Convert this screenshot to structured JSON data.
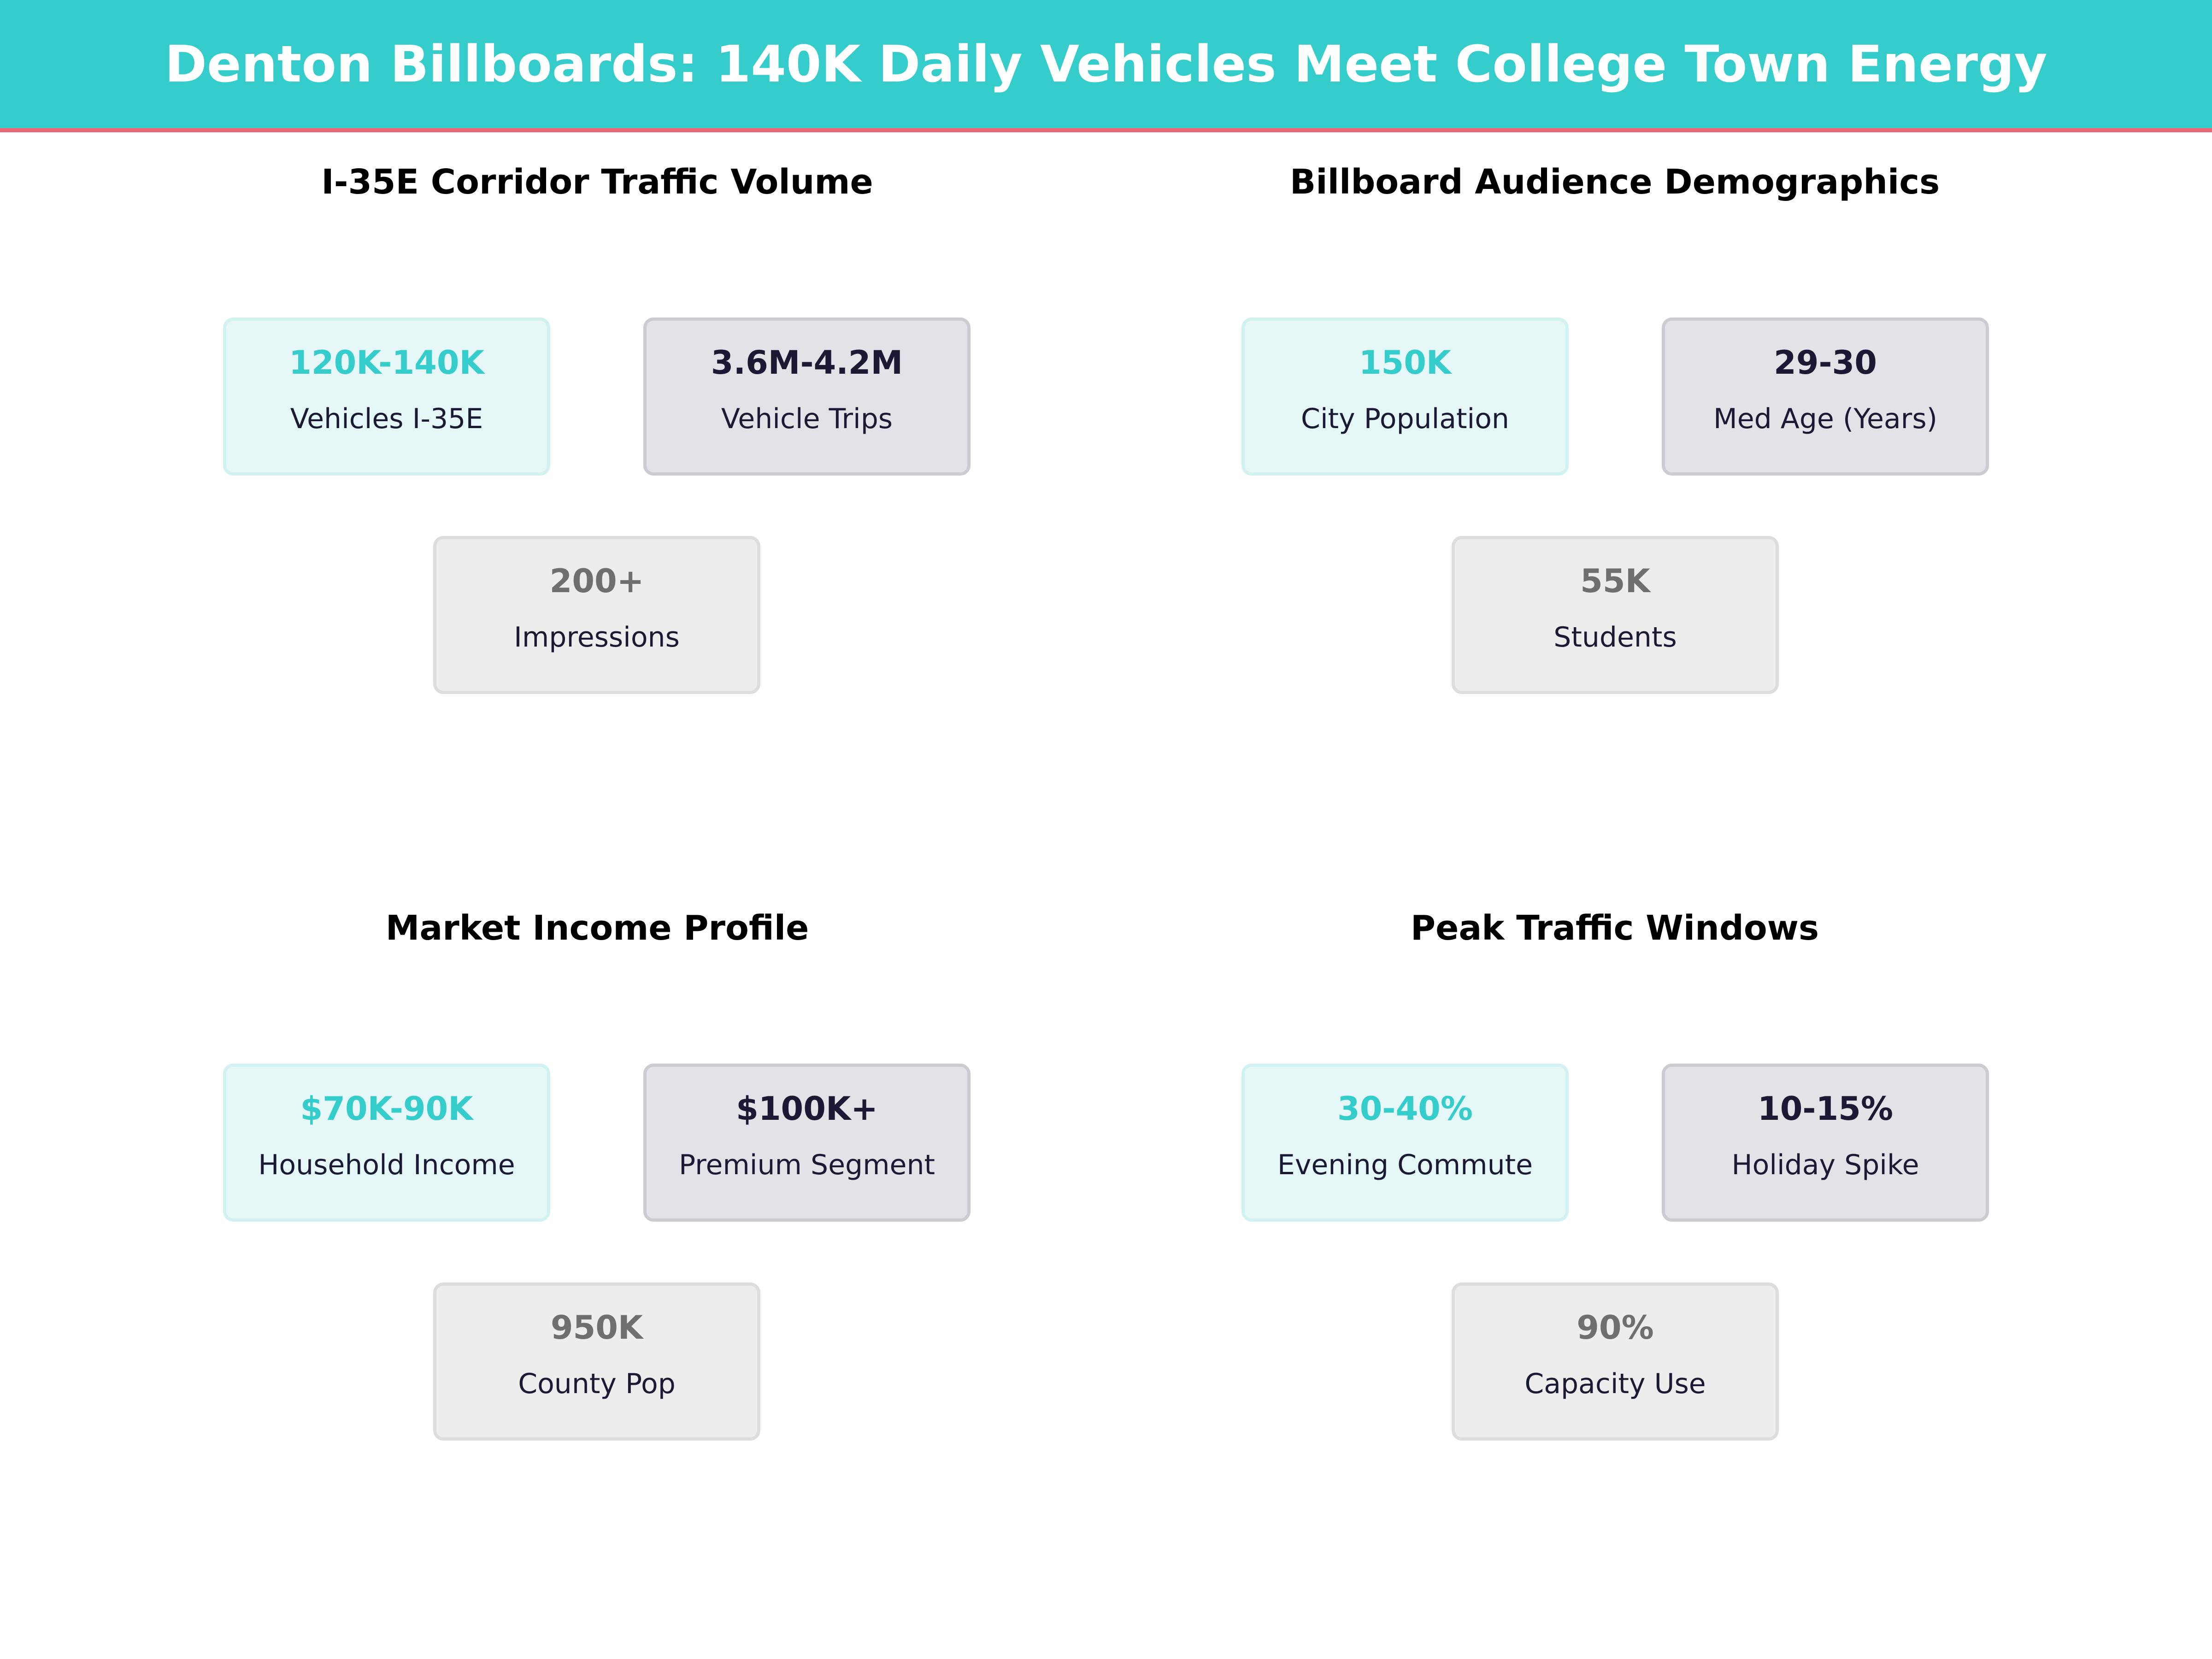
{
  "header": {
    "title": "Denton Billboards: 140K Daily Vehicles Meet College Town Energy"
  },
  "colors": {
    "primary": "#35CCCC",
    "accent": "#EE6677",
    "dark": "#1a1a35",
    "muted": "#6F6F6F"
  },
  "panels": [
    {
      "title": "I-35E Corridor Traffic Volume",
      "cards": [
        {
          "value": "120K-140K",
          "label": "Vehicles I-35E"
        },
        {
          "value": "3.6M-4.2M",
          "label": "Vehicle Trips"
        },
        {
          "value": "200+",
          "label": "Impressions"
        }
      ]
    },
    {
      "title": "Billboard Audience Demographics",
      "cards": [
        {
          "value": "150K",
          "label": "City Population"
        },
        {
          "value": "29-30",
          "label": "Med Age (Years)"
        },
        {
          "value": "55K",
          "label": "Students"
        }
      ]
    },
    {
      "title": "Market Income Profile",
      "cards": [
        {
          "value": "$70K-90K",
          "label": "Household Income"
        },
        {
          "value": "$100K+",
          "label": "Premium Segment"
        },
        {
          "value": "950K",
          "label": "County Pop"
        }
      ]
    },
    {
      "title": "Peak Traffic Windows",
      "cards": [
        {
          "value": "30-40%",
          "label": "Evening Commute"
        },
        {
          "value": "10-15%",
          "label": "Holiday Spike"
        },
        {
          "value": "90%",
          "label": "Capacity Use"
        }
      ]
    }
  ]
}
